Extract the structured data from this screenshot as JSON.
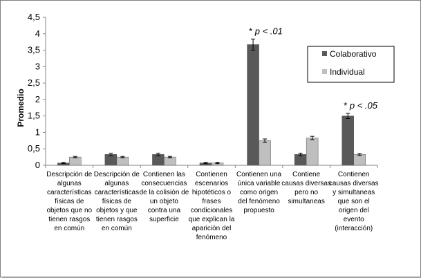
{
  "chart_data": {
    "type": "bar",
    "ylabel": "Promedio",
    "ylim": [
      0,
      4.5
    ],
    "yticks": [
      "0",
      "0,5",
      "1",
      "1,5",
      "2",
      "2,5",
      "3",
      "3,5",
      "4",
      "4,5"
    ],
    "grid": false,
    "legend_position": "right",
    "categories": [
      [
        "Descripción de",
        "algunas",
        "características",
        "físicas de",
        "objetos que no",
        "tienen rasgos",
        "en común"
      ],
      [
        "Descripción de",
        "algunas",
        "características",
        "físicas de",
        "objetos y que",
        "tienen rasgos",
        "en común"
      ],
      [
        "Contienen las",
        "consecuencias",
        "de la colisión de",
        "un objeto",
        "contra una",
        "superficie"
      ],
      [
        "Contienen",
        "escenarios",
        "hipotéticos o",
        "frases",
        "condicionales",
        "que explican la",
        "aparición del",
        "fenómeno"
      ],
      [
        "Contienen una",
        "única variable",
        "como origen",
        "del fenómeno",
        "propuesto"
      ],
      [
        "Contiene",
        "causas diversas",
        "pero no",
        "simultaneas"
      ],
      [
        "Contienen",
        "causas diversas",
        "y simultaneas",
        "que son el",
        "origen del",
        "evento",
        "(interacción)"
      ]
    ],
    "series": [
      {
        "name": "Colaborativo",
        "color": "#595959",
        "values": [
          0.07,
          0.33,
          0.33,
          0.07,
          3.67,
          0.33,
          1.5
        ],
        "errors": [
          0.02,
          0.04,
          0.04,
          0.02,
          0.17,
          0.04,
          0.08
        ]
      },
      {
        "name": "Individual",
        "color": "#bfbfbf",
        "values": [
          0.25,
          0.25,
          0.25,
          0.07,
          0.75,
          0.83,
          0.33
        ],
        "errors": [
          0.02,
          0.02,
          0.02,
          0.02,
          0.05,
          0.05,
          0.03
        ]
      }
    ],
    "annotations": [
      {
        "category_index": 4,
        "text_prefix": "* ",
        "text_italic": "p < .01"
      },
      {
        "category_index": 6,
        "text_prefix": "* ",
        "text_italic": "p < .05"
      }
    ]
  }
}
